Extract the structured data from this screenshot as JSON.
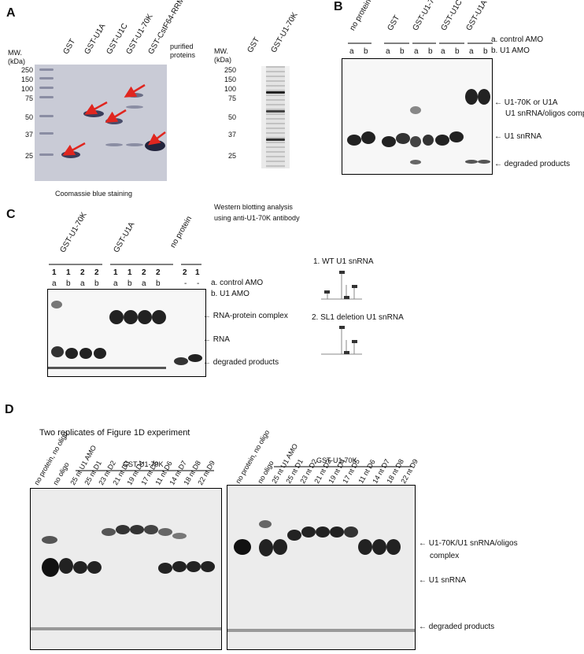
{
  "panels": {
    "A": {
      "letter": "A",
      "mw_label": [
        "MW.",
        "(kDa)"
      ],
      "lanes": [
        "GST",
        "GST-U1A",
        "GST-U1C",
        "GST-U1-70K",
        "GST-CstF64-RRM"
      ],
      "note": [
        "purified",
        "proteins"
      ],
      "markers": [
        "250",
        "150",
        "100",
        "75",
        "50",
        "37",
        "25"
      ],
      "caption": "Coomassie blue staining",
      "wb_mw_label": [
        "MW.",
        "(kDa)"
      ],
      "wb_lanes": [
        "GST",
        "GST-U1-70K"
      ],
      "wb_markers": [
        "250",
        "150",
        "100",
        "75",
        "50",
        "37",
        "25"
      ],
      "wb_caption": [
        "Western blotting analysis",
        "using anti-U1-70K antibody"
      ]
    },
    "B": {
      "letter": "B",
      "lanes": [
        "no protein",
        "GST",
        "GST-U1-70K",
        "GST-U1C",
        "GST-U1A"
      ],
      "ab": [
        "a",
        "b"
      ],
      "legend": [
        "a. control AMO",
        "b. U1 AMO"
      ],
      "arrows": [
        "U1-70K or U1A",
        "U1 snRNA/oligos complex",
        "U1 snRNA",
        "degraded products"
      ]
    },
    "C": {
      "letter": "C",
      "groups": [
        "GST-U1-70K",
        "GST-U1A",
        "no protein"
      ],
      "nums1": [
        "1",
        "1",
        "2",
        "2",
        "1",
        "1",
        "2",
        "2",
        "2",
        "1"
      ],
      "nums2": [
        "a",
        "b",
        "a",
        "b",
        "a",
        "b",
        "a",
        "b",
        "-",
        "-"
      ],
      "legend": [
        "a. control AMO",
        "b. U1 AMO"
      ],
      "arrows": [
        "RNA-protein  complex",
        "RNA",
        "degraded products"
      ],
      "structures": [
        "1. WT U1 snRNA",
        "2. SL1 deletion U1 snRNA"
      ]
    },
    "D": {
      "letter": "D",
      "title": "Two replicates of Figure 1D experiment",
      "group": "GST-U1-70K",
      "lanes": [
        "no protein, no oligo",
        "no oligo",
        "25 nt U1 AMO",
        "25 nt D1",
        "23 nt D2",
        "21 nt D3",
        "19 nt D4",
        "17 nt D5",
        "11 nt D6",
        "14 nt D7",
        "18 nt D8",
        "22 nt D9"
      ],
      "arrows": [
        "U1-70K/U1 snRNA/oligos",
        "complex",
        "U1 snRNA",
        "degraded products"
      ]
    }
  }
}
